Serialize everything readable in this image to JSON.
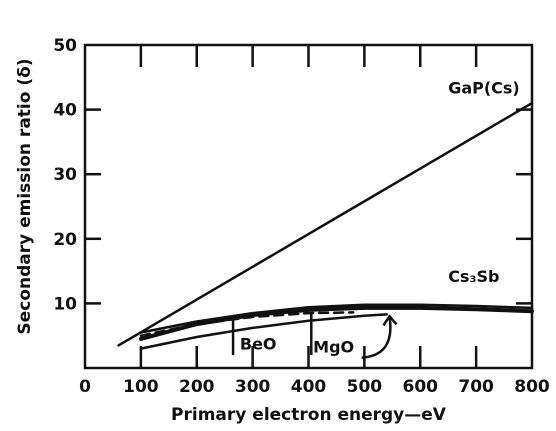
{
  "chart_data": {
    "type": "line",
    "xlabel": "Primary electron energy—eV",
    "ylabel": "Secondary emission ratio (δ)",
    "xlim": [
      0,
      800
    ],
    "ylim": [
      0,
      50
    ],
    "x_ticks": [
      "0",
      "100",
      "200",
      "300",
      "400",
      "500",
      "600",
      "700",
      "800"
    ],
    "y_ticks": [
      "10",
      "20",
      "30",
      "40",
      "50"
    ],
    "grid": false,
    "series": [
      {
        "name": "GaP(Cs)",
        "style": "solid",
        "points": [
          [
            60,
            3.5
          ],
          [
            800,
            41
          ]
        ]
      },
      {
        "name": "Cs₃Sb",
        "style": "solid-thick",
        "points": [
          [
            100,
            4.5
          ],
          [
            200,
            6.8
          ],
          [
            300,
            8.2
          ],
          [
            400,
            9.0
          ],
          [
            500,
            9.3
          ],
          [
            600,
            9.3
          ],
          [
            700,
            9.1
          ],
          [
            800,
            8.8
          ]
        ]
      },
      {
        "name": "",
        "style": "solid",
        "points": [
          [
            100,
            5.5
          ],
          [
            200,
            7.2
          ],
          [
            300,
            8.5
          ],
          [
            400,
            9.4
          ],
          [
            500,
            9.8
          ],
          [
            600,
            9.8
          ],
          [
            700,
            9.6
          ],
          [
            800,
            9.3
          ]
        ]
      },
      {
        "name": "BeO",
        "style": "dashed",
        "points": [
          [
            100,
            5.0
          ],
          [
            200,
            6.8
          ],
          [
            300,
            7.9
          ],
          [
            400,
            8.5
          ],
          [
            480,
            8.6
          ]
        ]
      },
      {
        "name": "MgO",
        "style": "solid",
        "points": [
          [
            100,
            3.0
          ],
          [
            200,
            4.8
          ],
          [
            300,
            6.2
          ],
          [
            400,
            7.3
          ],
          [
            500,
            8.1
          ],
          [
            540,
            8.3
          ]
        ]
      }
    ],
    "annotations": [
      {
        "text": "BeO",
        "x": 310,
        "y": 3.5
      },
      {
        "text": "MgO",
        "x": 445,
        "y": 3.0
      }
    ],
    "colors": {
      "ink": "#111111",
      "background": "#ffffff"
    }
  }
}
